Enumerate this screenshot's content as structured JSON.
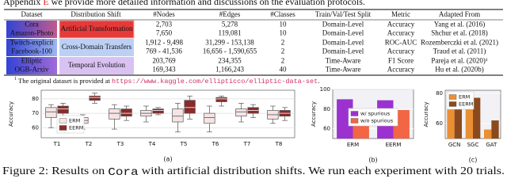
{
  "header": {
    "pre": "Appendix",
    "ref": "E",
    "post": "we provide more detailed information and discussions on the evaluation protocols."
  },
  "table": {
    "header": [
      "Dataset",
      "Distribution Shift",
      "#Nodes",
      "#Edges",
      "#Classes",
      "Train/Val/Test Split",
      "Metric",
      "Adapted From"
    ],
    "groups": [
      {
        "shift": "Artificial Transformation",
        "rows": [
          [
            "Cora",
            "2,703",
            "5,278",
            "10",
            "Domain-Level",
            "Accuracy",
            "Yang et al. (2016)"
          ],
          [
            "Amazon-Photo",
            "7,650",
            "119,081",
            "10",
            "Domain-Level",
            "Accuracy",
            "Shchur et al. (2018)"
          ]
        ]
      },
      {
        "shift": "Cross-Domain Transfers",
        "rows": [
          [
            "Twitch-explicit",
            "1,912 - 9,498",
            "31,299 - 153,138",
            "2",
            "Domain-Level",
            "ROC-AUC",
            "Rozemberczki et al. (2021)"
          ],
          [
            "Facebook-100",
            "769 - 41,536",
            "16,656 - 1,590,655",
            "2",
            "Domain-Level",
            "Accuracy",
            "Traud et al. (2011)"
          ]
        ]
      },
      {
        "shift": "Temporal Evolution",
        "rows": [
          [
            "Elliptic",
            "203,769",
            "234,355",
            "2",
            "Time-Aware",
            "F1 Score",
            "Pareja et al. (2020)¹"
          ],
          [
            "OGB-Arxiv",
            "169,343",
            "1,166,243",
            "40",
            "Time-Aware",
            "Accuracy",
            "Hu et al. (2020b)"
          ]
        ]
      }
    ]
  },
  "footnote": {
    "mark": "1",
    "text": "The original dataset is provided at",
    "url": "https://www.kaggle.com/ellipticco/elliptic-data-set",
    "end": "."
  },
  "chart_data": [
    {
      "type": "box",
      "label": "(a)",
      "y_label": "Accuracy",
      "categories": [
        "T1",
        "T2",
        "T3",
        "T4",
        "T5",
        "T6",
        "T7",
        "T8"
      ],
      "ylim": [
        53,
        86
      ],
      "yticks": [
        60,
        70,
        80
      ],
      "grid": true,
      "legend": "lower left",
      "series": [
        {
          "name": "ERM",
          "color": "#f6e4e4",
          "min": [
            60,
            59,
            59,
            64,
            57,
            57,
            64,
            63
          ],
          "q1": [
            67,
            63,
            66,
            68,
            64,
            63,
            68,
            66
          ],
          "median": [
            71,
            65,
            70,
            70,
            68,
            67,
            71,
            69
          ],
          "q3": [
            74,
            67,
            73,
            72,
            73,
            70,
            73,
            72
          ],
          "max": [
            76,
            69,
            76,
            75,
            77,
            75,
            77,
            75
          ]
        },
        {
          "name": "EERM",
          "color": "#8b2a2a",
          "min": [
            68,
            77,
            65,
            69,
            66,
            75,
            67,
            65
          ],
          "q1": [
            70,
            79,
            68,
            70,
            70,
            78,
            70,
            68
          ],
          "median": [
            73,
            81,
            70,
            72,
            74,
            80,
            72,
            70
          ],
          "q3": [
            75,
            82,
            73,
            73,
            79,
            81,
            74,
            72
          ],
          "max": [
            77,
            84,
            75,
            74,
            82,
            82,
            76,
            74
          ]
        }
      ]
    },
    {
      "type": "bar",
      "label": "(b)",
      "y_label": "Accuracy",
      "categories": [
        "ERM",
        "EERM"
      ],
      "ylim": [
        50,
        100
      ],
      "yticks": [
        60,
        80,
        100
      ],
      "grid": true,
      "legend": "center",
      "series": [
        {
          "name": "w/ spurious",
          "color": "#9b32d0",
          "values": [
            90,
            89
          ]
        },
        {
          "name": "w/o spurious",
          "color": "#f26545",
          "values": [
            70,
            79
          ]
        }
      ]
    },
    {
      "type": "bar",
      "label": "(c)",
      "y_label": "Accuracy",
      "categories": [
        "GCN",
        "SGC",
        "GAT"
      ],
      "ylim": [
        50,
        82
      ],
      "yticks": [
        60,
        80
      ],
      "grid": true,
      "legend": "upper left",
      "series": [
        {
          "name": "ERM",
          "color": "#eb8f33",
          "values": [
            70,
            70,
            56
          ]
        },
        {
          "name": "EERM",
          "color": "#8b4a1e",
          "values": [
            76,
            77,
            62
          ]
        }
      ]
    }
  ],
  "caption": {
    "prefix": "Figure 2: Results on",
    "code": "Cora",
    "suffix": "with artificial distribution shifts. We run each experiment with 20 trials."
  }
}
